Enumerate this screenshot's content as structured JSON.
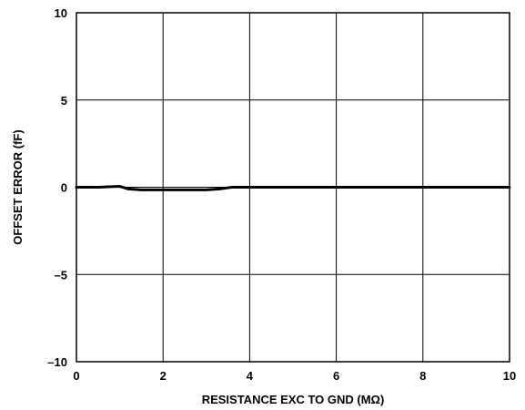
{
  "chart_data": {
    "type": "line",
    "xlabel": "RESISTANCE EXC TO GND (MΩ)",
    "ylabel": "OFFSET ERROR (fF)",
    "xlim": [
      0,
      10
    ],
    "ylim": [
      -10,
      10
    ],
    "xticks": [
      0,
      2,
      4,
      6,
      8,
      10
    ],
    "yticks": [
      10,
      5,
      0,
      -5,
      -10
    ],
    "ytick_labels": [
      "10",
      "5",
      "0",
      "–5",
      "–10"
    ],
    "grid": true,
    "series": [
      {
        "x": [
          0,
          0.5,
          1.0,
          1.2,
          1.5,
          2.0,
          2.5,
          3.0,
          3.3,
          3.6,
          4.0,
          5.0,
          6.0,
          7.0,
          8.0,
          9.0,
          10.0
        ],
        "y": [
          0,
          0,
          0.05,
          -0.1,
          -0.15,
          -0.15,
          -0.15,
          -0.15,
          -0.1,
          0,
          0,
          0,
          0,
          0,
          0,
          0,
          0
        ]
      }
    ]
  }
}
